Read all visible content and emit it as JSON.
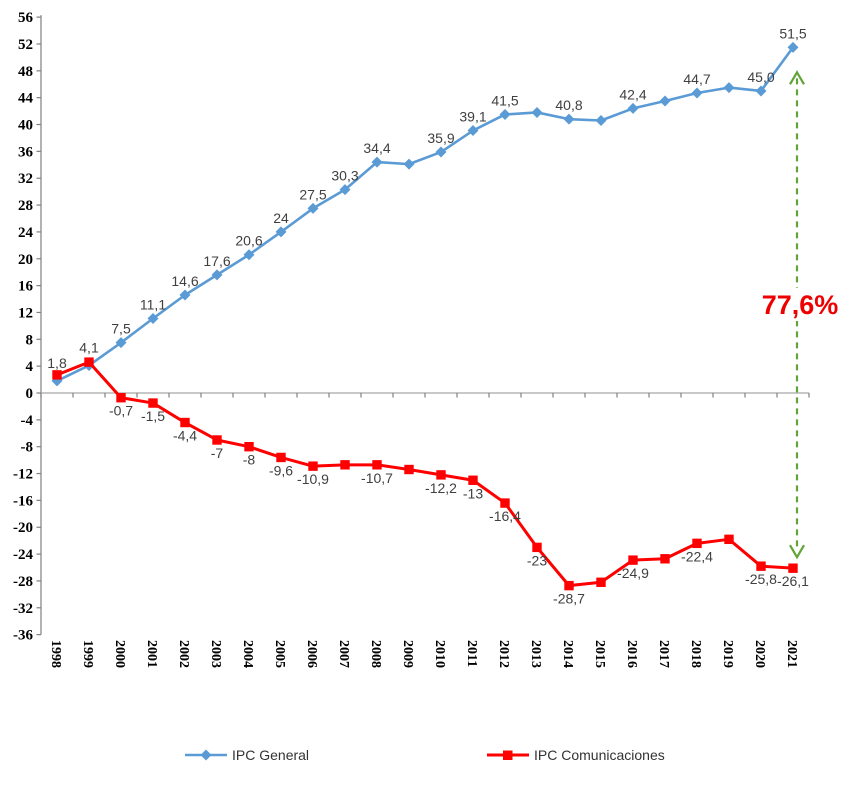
{
  "chart_data": {
    "type": "line",
    "title": "",
    "xlabel": "",
    "ylabel": "",
    "categories": [
      "1998",
      "1999",
      "2000",
      "2001",
      "2002",
      "2003",
      "2004",
      "2005",
      "2006",
      "2007",
      "2008",
      "2009",
      "2010",
      "2011",
      "2012",
      "2013",
      "2014",
      "2015",
      "2016",
      "2017",
      "2018",
      "2019",
      "2020",
      "2021"
    ],
    "series": [
      {
        "name": "IPC General",
        "color": "#5B9BD5",
        "marker": "diamond",
        "values": [
          1.8,
          4.1,
          7.5,
          11.1,
          14.6,
          17.6,
          20.6,
          24,
          27.5,
          30.3,
          34.4,
          34.1,
          35.9,
          39.1,
          41.5,
          41.8,
          40.8,
          40.6,
          42.4,
          43.5,
          44.7,
          45.5,
          45.0,
          51.5
        ],
        "labels": [
          "1,8",
          "4,1",
          "7,5",
          "11,1",
          "14,6",
          "17,6",
          "20,6",
          "24",
          "27,5",
          "30,3",
          "34,4",
          null,
          "35,9",
          "39,1",
          "41,5",
          null,
          "40,8",
          null,
          "42,4",
          null,
          "44,7",
          null,
          "45,0",
          "51,5"
        ]
      },
      {
        "name": "IPC Comunicaciones",
        "color": "#FF0000",
        "marker": "square",
        "values": [
          2.7,
          4.6,
          -0.7,
          -1.5,
          -4.4,
          -7,
          -8,
          -9.6,
          -10.9,
          -10.7,
          -10.7,
          -11.4,
          -12.2,
          -13,
          -16.4,
          -23,
          -28.7,
          -28.2,
          -24.9,
          -24.7,
          -22.4,
          -21.8,
          -25.8,
          -26.1
        ],
        "labels": [
          null,
          null,
          "-0,7",
          "-1,5",
          "-4,4",
          "-7",
          "-8",
          "-9,6",
          "-10,9",
          null,
          "-10,7",
          null,
          "-12,2",
          "-13",
          "-16,4",
          "-23",
          "-28,7",
          null,
          "-24,9",
          null,
          "-22,4",
          null,
          "-25,8",
          "-26,1"
        ]
      }
    ],
    "ylim": [
      -36,
      56
    ],
    "ytick_step": 4,
    "y_tick_labels": [
      "56",
      "52",
      "48",
      "44",
      "40",
      "36",
      "32",
      "28",
      "24",
      "20",
      "16",
      "12",
      "8",
      "4",
      "0",
      "-4",
      "-8",
      "-12",
      "-16",
      "-20",
      "-24",
      "-28",
      "-32",
      "-36"
    ],
    "grid": false,
    "legend_position": "bottom",
    "axis_color": "#808080",
    "zero_line_color": "#A6A6A6",
    "label_color": "#404040",
    "annotation": {
      "text": "77,6%",
      "text_color": "#EE0000",
      "arrow_color": "#61A437",
      "x_category": "2021"
    }
  },
  "legend": {
    "items": [
      {
        "label": "IPC General"
      },
      {
        "label": "IPC Comunicaciones"
      }
    ]
  }
}
